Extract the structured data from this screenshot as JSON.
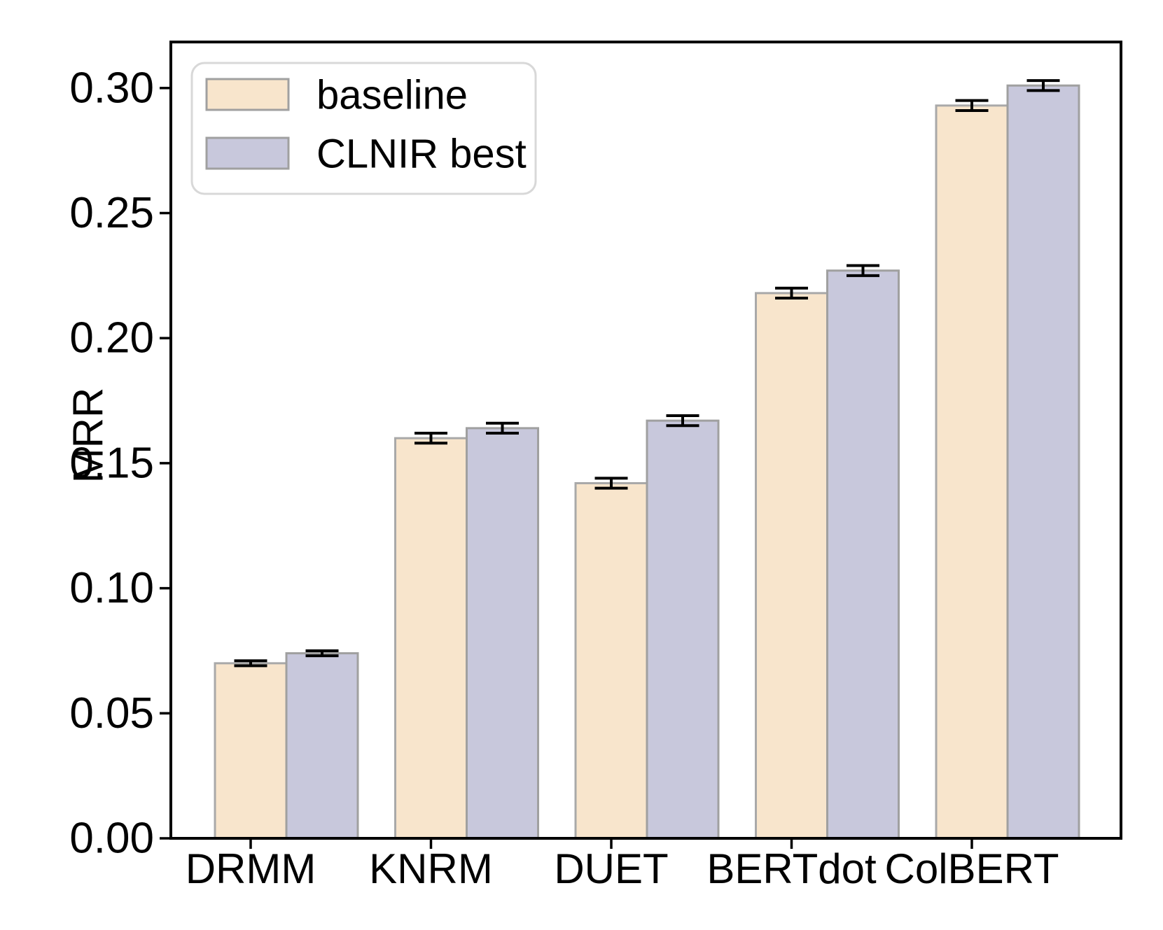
{
  "figure": {
    "background": "#ffffff",
    "spine_color": "#000000",
    "text_color": "#000000"
  },
  "chart_data": {
    "type": "bar",
    "title": "",
    "xlabel": "",
    "ylabel": "MRR",
    "categories": [
      "DRMM",
      "KNRM",
      "DUET",
      "BERTdot",
      "ColBERT"
    ],
    "series": [
      {
        "name": "baseline",
        "color": "#F8E5CC",
        "edge_color": "#A9A9A9",
        "values": [
          0.07,
          0.16,
          0.142,
          0.218,
          0.293
        ],
        "errors": [
          0.001,
          0.002,
          0.002,
          0.002,
          0.002
        ]
      },
      {
        "name": "CLNIR best",
        "color": "#C8C8DC",
        "edge_color": "#A0A0A0",
        "values": [
          0.074,
          0.164,
          0.167,
          0.227,
          0.301
        ],
        "errors": [
          0.001,
          0.002,
          0.002,
          0.002,
          0.002
        ]
      }
    ],
    "y_ticks": [
      0.0,
      0.05,
      0.1,
      0.15,
      0.2,
      0.25,
      0.3
    ],
    "y_tick_labels": [
      "0.00",
      "0.05",
      "0.10",
      "0.15",
      "0.20",
      "0.25",
      "0.30"
    ],
    "ylim": [
      0,
      0.3185
    ],
    "grid": false,
    "legend_position": "upper left",
    "error_bar_color": "#000000",
    "legend_border_color": "#D8D8D8"
  }
}
